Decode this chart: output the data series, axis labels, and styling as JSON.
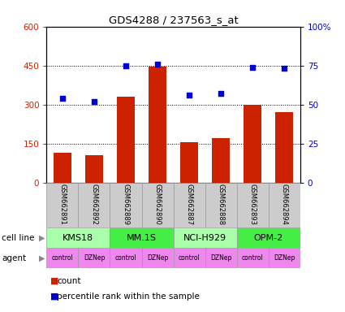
{
  "title": "GDS4288 / 237563_s_at",
  "samples": [
    "GSM662891",
    "GSM662892",
    "GSM662889",
    "GSM662890",
    "GSM662887",
    "GSM662888",
    "GSM662893",
    "GSM662894"
  ],
  "counts": [
    115,
    105,
    330,
    445,
    155,
    170,
    300,
    270
  ],
  "percentiles": [
    54,
    52,
    75,
    76,
    56,
    57,
    74,
    73
  ],
  "cell_lines": [
    {
      "name": "KMS18",
      "span": [
        0,
        2
      ],
      "color": "#aaffaa"
    },
    {
      "name": "MM.1S",
      "span": [
        2,
        4
      ],
      "color": "#44ee44"
    },
    {
      "name": "NCI-H929",
      "span": [
        4,
        6
      ],
      "color": "#aaffaa"
    },
    {
      "name": "OPM-2",
      "span": [
        6,
        8
      ],
      "color": "#44ee44"
    }
  ],
  "agents": [
    "control",
    "DZNep",
    "control",
    "DZNep",
    "control",
    "DZNep",
    "control",
    "DZNep"
  ],
  "agent_color": "#ee88ee",
  "sample_bg_color": "#cccccc",
  "bar_color": "#cc2200",
  "dot_color": "#0000cc",
  "ylim_left": [
    0,
    600
  ],
  "ylim_right": [
    0,
    100
  ],
  "yticks_left": [
    0,
    150,
    300,
    450,
    600
  ],
  "yticks_right": [
    0,
    25,
    50,
    75,
    100
  ],
  "ytick_labels_left": [
    "0",
    "150",
    "300",
    "450",
    "600"
  ],
  "ytick_labels_right": [
    "0",
    "25",
    "50",
    "75",
    "100%"
  ]
}
